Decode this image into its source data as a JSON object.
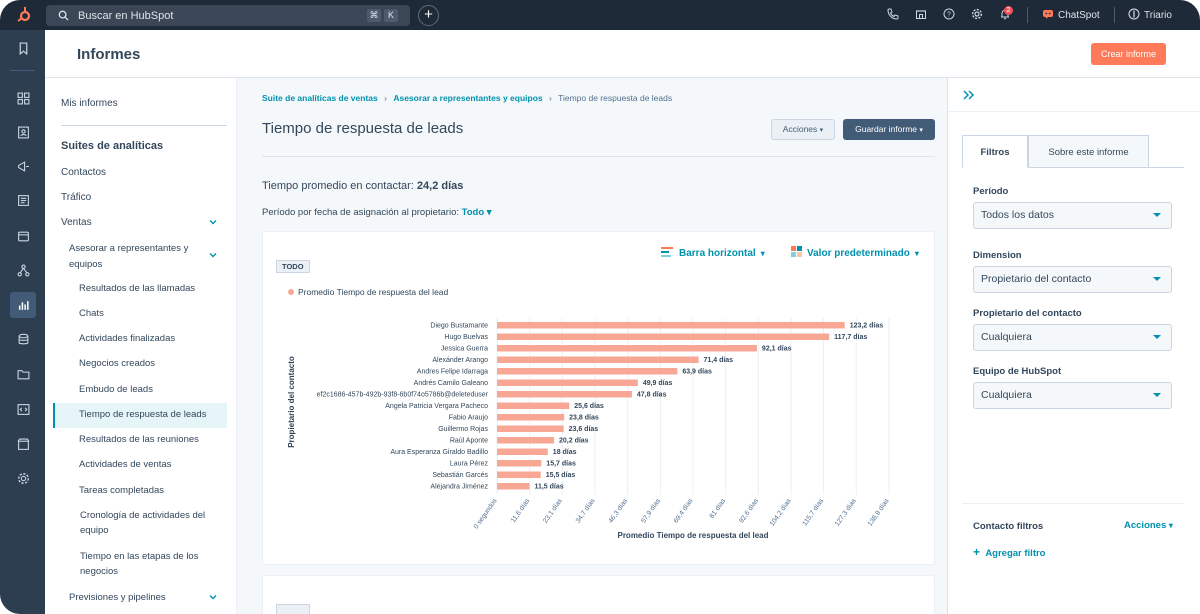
{
  "topbar": {
    "search_placeholder": "Buscar en HubSpot",
    "shortcut_keys": [
      "⌘",
      "K"
    ],
    "notification_count": "2",
    "chatspot_label": "ChatSpot",
    "account_name": "Triario"
  },
  "header": {
    "title": "Informes",
    "create_button": "Crear informe"
  },
  "nav": {
    "my_reports": "Mis informes",
    "suites_heading": "Suites de analíticas",
    "contacts": "Contactos",
    "traffic": "Tráfico",
    "sales": "Ventas",
    "advise_group": "Asesorar a representantes y equipos",
    "items": [
      "Resultados de las llamadas",
      "Chats",
      "Actividades finalizadas",
      "Negocios creados",
      "Embudo de leads",
      "Tiempo de respuesta de leads",
      "Resultados de las reuniones",
      "Actividades de ventas",
      "Tareas completadas",
      "Cronología de actividades del equipo",
      "Tiempo en las etapas de los negocios"
    ],
    "forecasts": "Previsiones y pipelines"
  },
  "breadcrumb": {
    "level1": "Suite de analíticas de ventas",
    "level2": "Asesorar a representantes y equipos",
    "current": "Tiempo de respuesta de leads"
  },
  "report": {
    "title": "Tiempo de respuesta de leads",
    "actions_button": "Acciones",
    "save_button": "Guardar informe",
    "avg_label": "Tiempo promedio en contactar:",
    "avg_value": "24,2 días",
    "period_label": "Período por fecha de asignación al propietario:",
    "period_value": "Todo",
    "tag": "TODO",
    "chart_type_label": "Barra horizontal",
    "chart_mode_label": "Valor predeterminado"
  },
  "chart_data": {
    "type": "bar",
    "orientation": "horizontal",
    "legend": "Promedio Tiempo de respuesta del lead",
    "xlabel": "Promedio Tiempo de respuesta del lead",
    "ylabel": "Propietario del contacto",
    "categories": [
      "Diego Bustamante",
      "Hugo Buelvas",
      "Jessica Guerra",
      "Alexánder Arango",
      "Andres Felipe Idarraga",
      "Andrés Camilo Galeano",
      "ef2c1686-457b-492b-93f8-6b0f74o5786b@deleteduser",
      "Angela Patricia Vergara Pacheco",
      "Fabio Araujo",
      "Guillermo Rojas",
      "Raúl Aponte",
      "Aura Esperanza Giraldo Badillo",
      "Laura Pérez",
      "Sebastián Garcés",
      "Alejandra Jiménez"
    ],
    "values": [
      123.2,
      117.7,
      92.1,
      71.4,
      63.9,
      49.9,
      47.8,
      25.6,
      23.8,
      23.6,
      20.2,
      18,
      15.7,
      15.5,
      11.5
    ],
    "value_labels": [
      "123,2 días",
      "117,7 días",
      "92,1 días",
      "71,4 días",
      "63,9 días",
      "49,9 días",
      "47,8 días",
      "25,6 días",
      "23,8 días",
      "23,6 días",
      "20,2 días",
      "18 días",
      "15,7 días",
      "15,5 días",
      "11,5 días"
    ],
    "ticks": [
      0,
      11.6,
      23.1,
      34.7,
      46.3,
      57.9,
      69.4,
      81,
      92.6,
      104.2,
      115.7,
      127.3,
      138.9
    ],
    "tick_labels": [
      "0 segundos",
      "11,6 días",
      "23,1 días",
      "34,7 días",
      "46,3 días",
      "57,9 días",
      "69,4 días",
      "81 días",
      "92,6 días",
      "104,2 días",
      "115,7 días",
      "127,3 días",
      "138,9 días"
    ],
    "xlim": [
      0,
      138.9
    ],
    "bar_color": "#f8a795"
  },
  "filters": {
    "tabs": [
      "Filtros",
      "Sobre este informe"
    ],
    "period_label": "Período",
    "period_value": "Todos los datos",
    "dimension_label": "Dimension",
    "dimension_value": "Propietario del contacto",
    "owner_label": "Propietario del contacto",
    "owner_value": "Cualquiera",
    "team_label": "Equipo de HubSpot",
    "team_value": "Cualquiera",
    "contact_filters_label": "Contacto filtros",
    "contact_filters_actions": "Acciones",
    "add_filter": "Agregar filtro"
  },
  "colors": {
    "accent": "#0091ae",
    "brand": "#ff7a59",
    "nav_dark": "#2d3e50",
    "bar": "#f8a795"
  }
}
